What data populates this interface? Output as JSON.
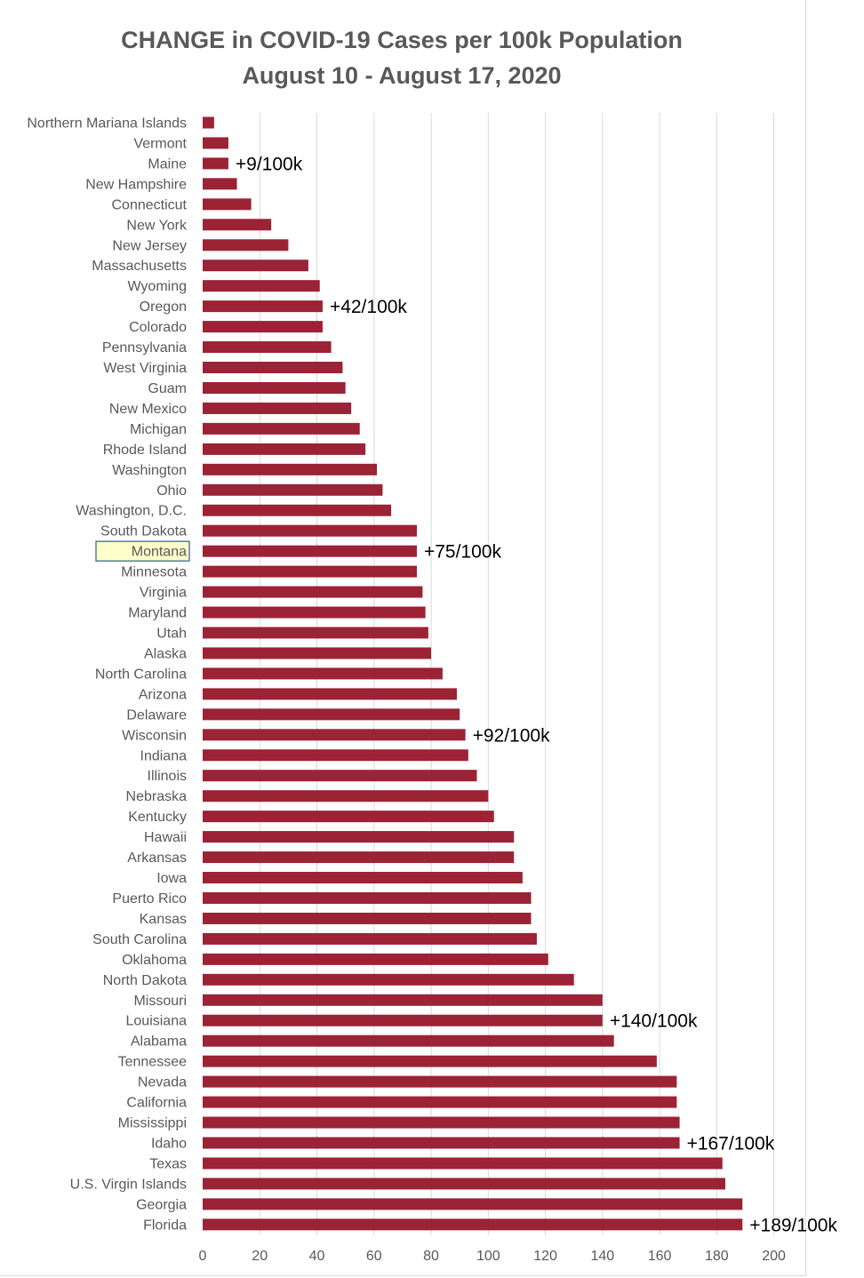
{
  "chart_data": {
    "type": "bar",
    "orientation": "horizontal",
    "title": "CHANGE in COVID-19 Cases per 100k Population",
    "subtitle": "August 10 - August 17, 2020",
    "xlabel": "",
    "ylabel": "",
    "xlim": [
      0,
      200
    ],
    "xticks": [
      "0",
      "20",
      "40",
      "60",
      "80",
      "100",
      "120",
      "140",
      "160",
      "180",
      "200"
    ],
    "grid": true,
    "legend": "none",
    "bar_color": "#9B2335",
    "highlight_color": "#FFFFCC",
    "highlight_border": "#2E5C8A",
    "highlighted_category": "Montana",
    "categories": [
      "Northern Mariana Islands",
      "Vermont",
      "Maine",
      "New Hampshire",
      "Connecticut",
      "New York",
      "New Jersey",
      "Massachusetts",
      "Wyoming",
      "Oregon",
      "Colorado",
      "Pennsylvania",
      "West Virginia",
      "Guam",
      "New Mexico",
      "Michigan",
      "Rhode Island",
      "Washington",
      "Ohio",
      "Washington, D.C.",
      "South Dakota",
      "Montana",
      "Minnesota",
      "Virginia",
      "Maryland",
      "Utah",
      "Alaska",
      "North Carolina",
      "Arizona",
      "Delaware",
      "Wisconsin",
      "Indiana",
      "Illinois",
      "Nebraska",
      "Kentucky",
      "Hawaii",
      "Arkansas",
      "Iowa",
      "Puerto Rico",
      "Kansas",
      "South Carolina",
      "Oklahoma",
      "North Dakota",
      "Missouri",
      "Louisiana",
      "Alabama",
      "Tennessee",
      "Nevada",
      "California",
      "Mississippi",
      "Idaho",
      "Texas",
      "U.S. Virgin Islands",
      "Georgia",
      "Florida"
    ],
    "values": [
      4,
      9,
      9,
      12,
      17,
      24,
      30,
      37,
      41,
      42,
      42,
      45,
      49,
      50,
      52,
      55,
      57,
      61,
      63,
      66,
      75,
      75,
      75,
      77,
      78,
      79,
      80,
      84,
      89,
      90,
      92,
      93,
      96,
      100,
      102,
      109,
      109,
      112,
      115,
      115,
      117,
      121,
      130,
      140,
      140,
      144,
      159,
      166,
      166,
      167,
      167,
      182,
      183,
      189,
      189
    ],
    "annotations": [
      {
        "category": "Maine",
        "text": "+9/100k"
      },
      {
        "category": "Oregon",
        "text": "+42/100k"
      },
      {
        "category": "Montana",
        "text": "+75/100k"
      },
      {
        "category": "Wisconsin",
        "text": "+92/100k"
      },
      {
        "category": "Louisiana",
        "text": "+140/100k"
      },
      {
        "category": "Idaho",
        "text": "+167/100k"
      },
      {
        "category": "Florida",
        "text": "+189/100k"
      }
    ]
  }
}
